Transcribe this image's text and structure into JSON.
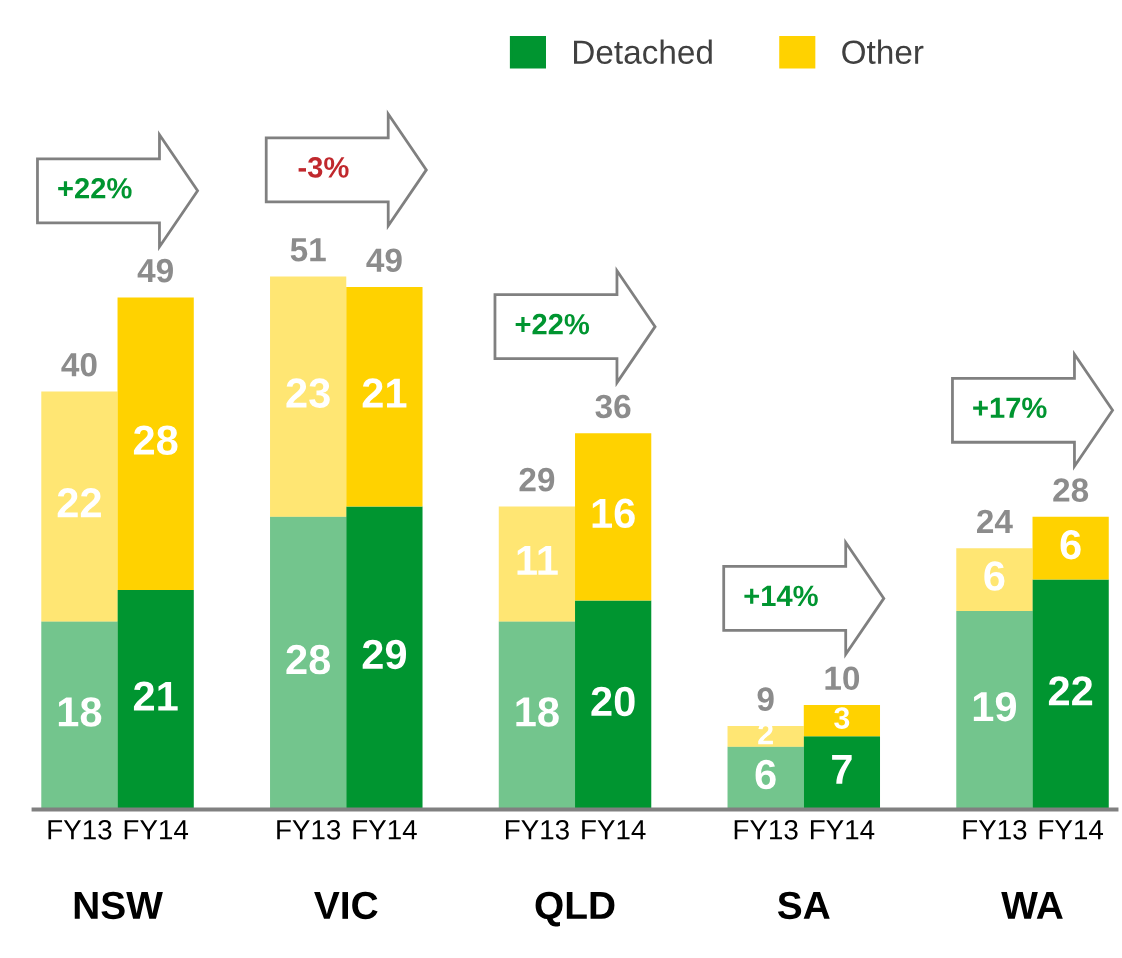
{
  "chart_data": {
    "type": "bar",
    "stacked": true,
    "categories": [
      "FY13",
      "FY14",
      "FY13",
      "FY14",
      "FY13",
      "FY14",
      "FY13",
      "FY14",
      "FY13",
      "FY14"
    ],
    "series": [
      {
        "name": "Detached",
        "color": "#009530",
        "values": [
          18,
          21,
          28,
          29,
          18,
          20,
          6,
          7,
          19,
          22
        ]
      },
      {
        "name": "Other",
        "color": "#ffd200",
        "values": [
          22,
          28,
          23,
          21,
          11,
          16,
          2,
          3,
          6,
          6
        ]
      }
    ],
    "totals": [
      "40",
      "49",
      "51",
      "49",
      "29",
      "36",
      "9",
      "10",
      "24",
      "28"
    ],
    "data_labels": true,
    "legend": "top",
    "grid": false,
    "annotations": [
      "NSW",
      "VIC",
      "QLD",
      "SA",
      "WA",
      "+22%",
      "-3%",
      "+22%",
      "+14%",
      "+17%"
    ]
  }
}
